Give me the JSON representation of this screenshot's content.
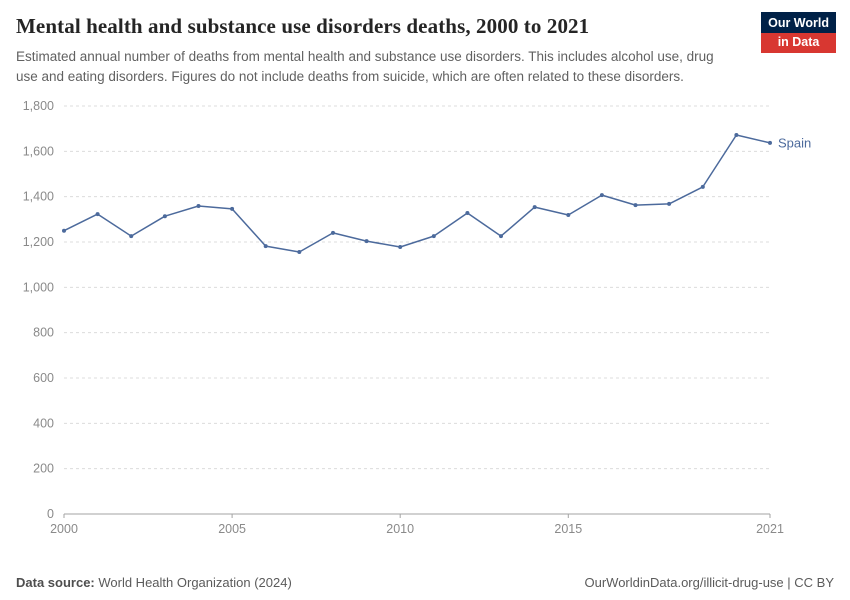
{
  "header": {
    "title": "Mental health and substance use disorders deaths, 2000 to 2021",
    "subtitle": "Estimated annual number of deaths from mental health and substance use disorders. This includes alcohol use, drug use and eating disorders. Figures do not include deaths from suicide, which are often related to these disorders.",
    "logo": {
      "line1": "Our World",
      "line2": "in Data"
    }
  },
  "chart_data": {
    "type": "line",
    "title": "Mental health and substance use disorders deaths, 2000 to 2021",
    "x": [
      2000,
      2001,
      2002,
      2003,
      2004,
      2005,
      2006,
      2007,
      2008,
      2009,
      2010,
      2011,
      2012,
      2013,
      2014,
      2015,
      2016,
      2017,
      2018,
      2019,
      2020,
      2021
    ],
    "series": [
      {
        "name": "Spain",
        "color": "#4c6a9c",
        "values": [
          1250,
          1323,
          1226,
          1314,
          1359,
          1346,
          1182,
          1156,
          1240,
          1204,
          1178,
          1226,
          1328,
          1226,
          1354,
          1319,
          1407,
          1363,
          1368,
          1443,
          1672,
          1637
        ]
      }
    ],
    "xlabel": "",
    "ylabel": "",
    "ylim": [
      0,
      1800
    ],
    "yticks": [
      0,
      200,
      400,
      600,
      800,
      1000,
      1200,
      1400,
      1600,
      1800
    ],
    "xticks": [
      2000,
      2005,
      2010,
      2015,
      2021
    ],
    "grid": true,
    "legend_position": "end-of-line",
    "grid_color": "#dcdcdc",
    "axis_color": "#a3a3a3",
    "tick_label_color": "#8a8a8a"
  },
  "footer": {
    "source_label": "Data source:",
    "source": " World Health Organization (2024)",
    "credit": "OurWorldinData.org/illicit-drug-use | CC BY"
  }
}
